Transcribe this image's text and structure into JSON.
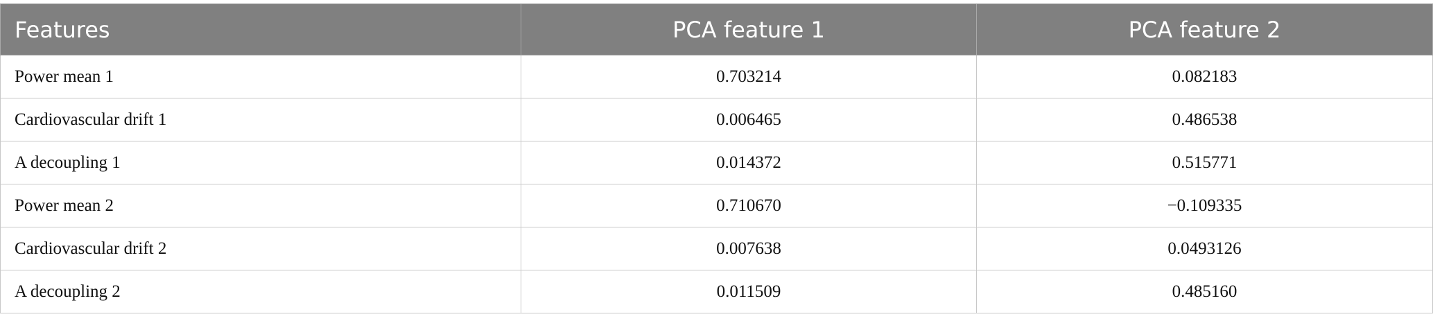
{
  "table": {
    "header": [
      "Features",
      "PCA feature 1",
      "PCA feature 2"
    ],
    "rows": [
      [
        "Power mean 1",
        "0.703214",
        "0.082183"
      ],
      [
        "Cardiovascular drift 1",
        "0.006465",
        "0.486538"
      ],
      [
        "A decoupling 1",
        "0.014372",
        "0.515771"
      ],
      [
        "Power mean 2",
        "0.710670",
        "−0.109335"
      ],
      [
        "Cardiovascular drift 2",
        "0.007638",
        "0.0493126"
      ],
      [
        "A decoupling 2",
        "0.011509",
        "0.485160"
      ]
    ]
  }
}
